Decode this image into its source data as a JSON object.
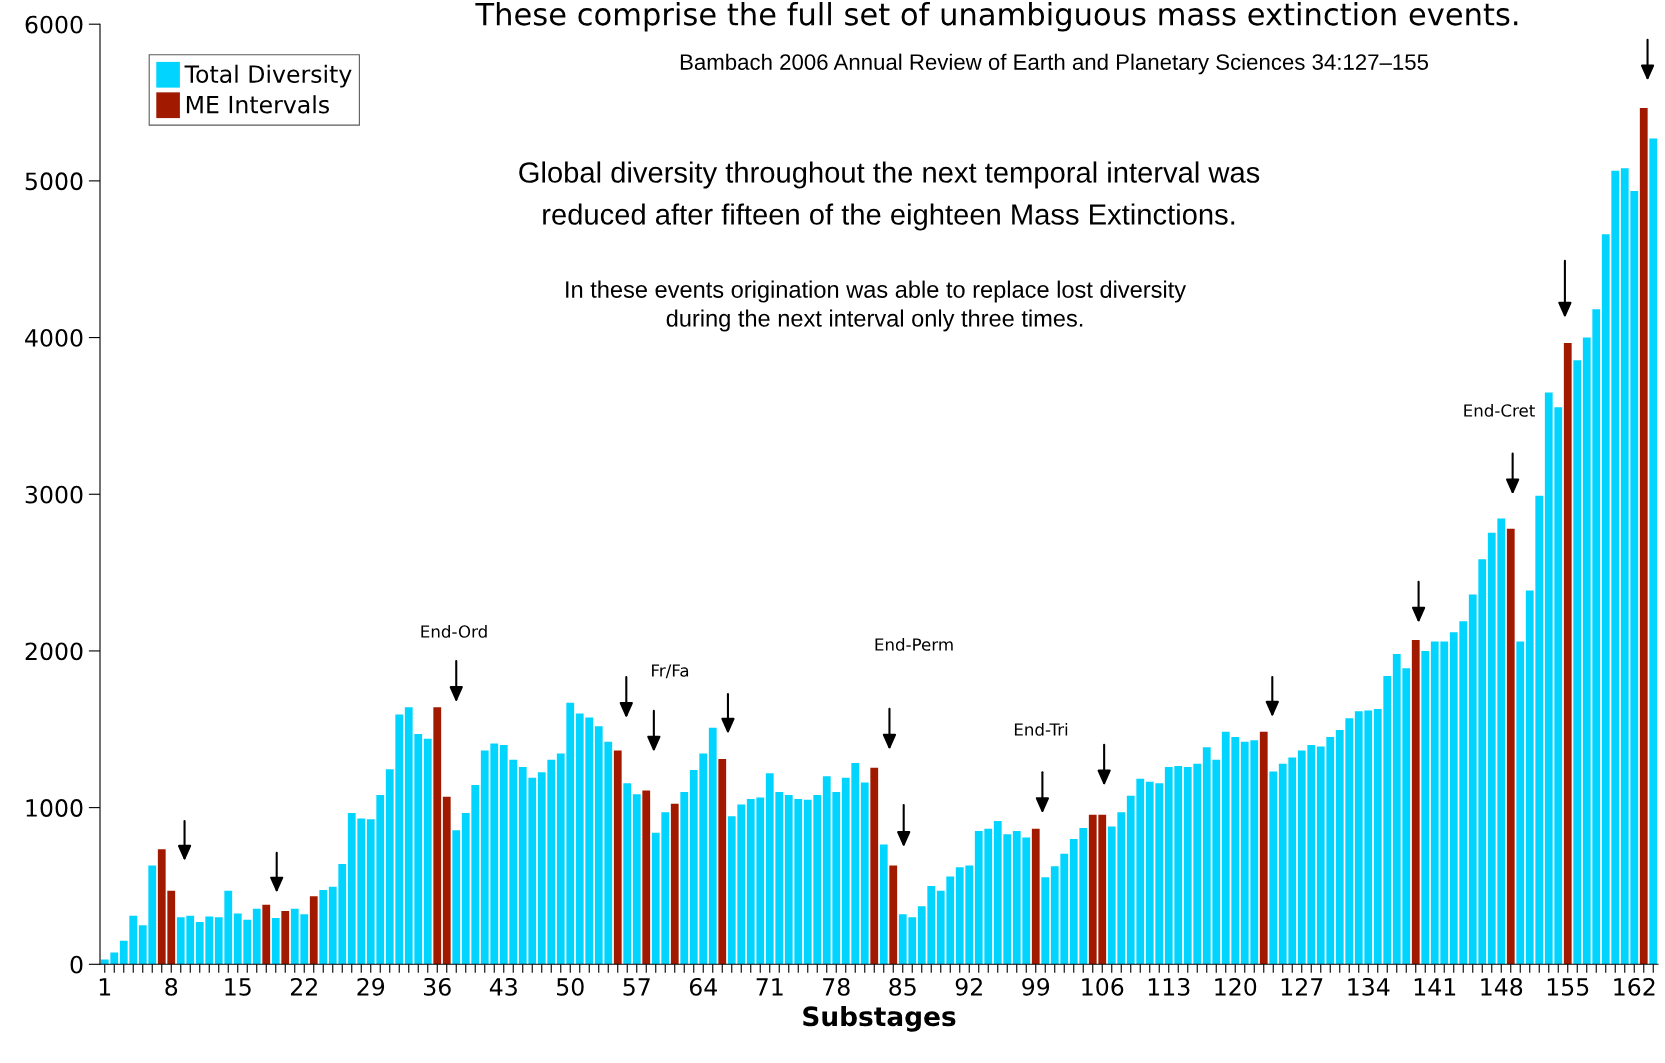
{
  "chart_data": {
    "type": "bar",
    "title": "These comprise the full set of unambiguous mass extinction events.",
    "xlabel": "Substages",
    "categories": [
      "1",
      null,
      null,
      null,
      null,
      null,
      null,
      "8",
      null,
      null,
      null,
      null,
      null,
      null,
      "15",
      null,
      null,
      null,
      null,
      null,
      null,
      "22",
      null,
      null,
      null,
      null,
      null,
      null,
      "29",
      null,
      null,
      null,
      null,
      null,
      null,
      "36",
      null,
      null,
      null,
      null,
      null,
      null,
      "43",
      null,
      null,
      null,
      null,
      null,
      null,
      "50",
      null,
      null,
      null,
      null,
      null,
      null,
      "57",
      null,
      null,
      null,
      null,
      null,
      null,
      "64",
      null,
      null,
      null,
      null,
      null,
      null,
      "71",
      null,
      null,
      null,
      null,
      null,
      null,
      "78",
      null,
      null,
      null,
      null,
      null,
      null,
      "85",
      null,
      null,
      null,
      null,
      null,
      null,
      "92",
      null,
      null,
      null,
      null,
      null,
      null,
      "99",
      null,
      null,
      null,
      null,
      null,
      null,
      "106",
      null,
      null,
      null,
      null,
      null,
      null,
      "113",
      null,
      null,
      null,
      null,
      null,
      null,
      "120",
      null,
      null,
      null,
      null,
      null,
      null,
      "127",
      null,
      null,
      null,
      null,
      null,
      null,
      "134",
      null,
      null,
      null,
      null,
      null,
      null,
      "141",
      null,
      null,
      null,
      null,
      null,
      null,
      "148",
      null,
      null,
      null,
      null,
      null,
      null,
      "155",
      null,
      null,
      null,
      null,
      null,
      null,
      "162",
      null,
      null
    ],
    "series": [
      {
        "name": "Total Diversity",
        "color": "#00d4ff",
        "values": [
          30,
          75,
          150,
          310,
          250,
          630,
          null,
          null,
          300,
          310,
          270,
          305,
          300,
          470,
          325,
          285,
          355,
          null,
          295,
          null,
          355,
          320,
          null,
          475,
          495,
          640,
          965,
          930,
          925,
          1080,
          1245,
          1595,
          1640,
          1470,
          1440,
          null,
          null,
          855,
          965,
          1145,
          1365,
          1410,
          1400,
          1305,
          1260,
          1190,
          1225,
          1305,
          1345,
          1670,
          1600,
          1575,
          1520,
          1420,
          null,
          1155,
          1085,
          null,
          840,
          970,
          null,
          1100,
          1240,
          1345,
          1510,
          null,
          945,
          1020,
          1055,
          1065,
          1220,
          1100,
          1080,
          1055,
          1050,
          1080,
          1200,
          1100,
          1190,
          1285,
          1160,
          null,
          765,
          null,
          320,
          300,
          370,
          500,
          470,
          560,
          620,
          630,
          850,
          865,
          915,
          830,
          850,
          810,
          null,
          555,
          625,
          705,
          800,
          870,
          null,
          null,
          880,
          970,
          1075,
          1185,
          1165,
          1155,
          1260,
          1265,
          1260,
          1280,
          1385,
          1305,
          1485,
          1450,
          1420,
          1430,
          null,
          1230,
          1280,
          1320,
          1365,
          1400,
          1390,
          1450,
          1495,
          1570,
          1615,
          1620,
          1630,
          1840,
          1980,
          1890,
          null,
          2000,
          2060,
          2060,
          2120,
          2190,
          2360,
          2585,
          2755,
          2845,
          null,
          2060,
          2385,
          2990,
          3650,
          3555,
          null,
          3855,
          4000,
          4180,
          4660,
          5065,
          5080,
          4935,
          null,
          5270
        ]
      },
      {
        "name": "ME Intervals",
        "color": "#a11a00",
        "values": [
          null,
          null,
          null,
          null,
          null,
          null,
          735,
          470,
          null,
          null,
          null,
          null,
          null,
          null,
          null,
          null,
          null,
          380,
          null,
          340,
          null,
          null,
          435,
          null,
          null,
          null,
          null,
          null,
          null,
          null,
          null,
          null,
          null,
          null,
          null,
          1640,
          1070,
          null,
          null,
          null,
          null,
          null,
          null,
          null,
          null,
          null,
          null,
          null,
          null,
          null,
          null,
          null,
          null,
          null,
          1365,
          null,
          null,
          1110,
          null,
          null,
          1025,
          null,
          null,
          null,
          null,
          1310,
          null,
          null,
          null,
          null,
          null,
          null,
          null,
          null,
          null,
          null,
          null,
          null,
          null,
          null,
          null,
          1255,
          null,
          630,
          null,
          null,
          null,
          null,
          null,
          null,
          null,
          null,
          null,
          null,
          null,
          null,
          null,
          null,
          865,
          null,
          null,
          null,
          null,
          null,
          955,
          955,
          null,
          null,
          null,
          null,
          null,
          null,
          null,
          null,
          null,
          null,
          null,
          null,
          null,
          null,
          null,
          null,
          1485,
          null,
          null,
          null,
          null,
          null,
          null,
          null,
          null,
          null,
          null,
          null,
          null,
          null,
          null,
          null,
          2070,
          null,
          null,
          null,
          null,
          null,
          null,
          null,
          null,
          null,
          2780,
          null,
          null,
          null,
          null,
          null,
          3965,
          null,
          null,
          null,
          null,
          null,
          null,
          null,
          5465,
          null
        ]
      }
    ],
    "ylim": [
      0,
      6000
    ],
    "yticks": [
      0,
      1000,
      2000,
      3000,
      4000,
      5000,
      6000
    ],
    "legend": "top left",
    "annotations": [
      "Bambach 2006 Annual Review of Earth and Planetary Sciences 34:127–155",
      "Global diversity throughout the next temporal interval was\nreduced after fifteen of the eighteen Mass Extinctions.",
      "In these events origination was able to replace lost diversity\nduring the next interval only three times.",
      "End-Ord",
      "Fr/Fa",
      "End-Perm",
      "End-Tri",
      "End-Cret"
    ]
  }
}
